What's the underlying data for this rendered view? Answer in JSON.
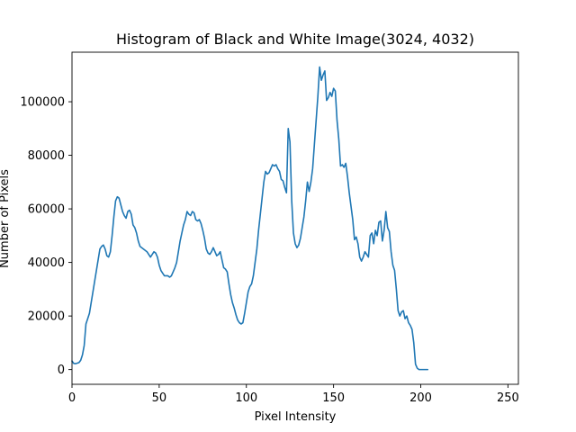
{
  "chart_data": {
    "type": "line",
    "title": "Histogram of Black and White Image(3024, 4032)",
    "xlabel": "Pixel Intensity",
    "ylabel": "Number of Pixels",
    "xlim": [
      0,
      256
    ],
    "ylim": [
      -5500,
      118500
    ],
    "grid": false,
    "legend": "none",
    "x_ticks": [
      0,
      50,
      100,
      150,
      200,
      250
    ],
    "y_ticks": [
      0,
      20000,
      40000,
      60000,
      80000,
      100000
    ],
    "colors": {
      "line": "#1f77b4",
      "axes": "#000000",
      "background": "#ffffff"
    },
    "series": [
      {
        "values": [
          3200,
          2300,
          2200,
          2400,
          2600,
          3500,
          5500,
          9000,
          17000,
          19000,
          21000,
          25000,
          29000,
          33000,
          37000,
          41000,
          45000,
          46000,
          46500,
          45000,
          42500,
          42000,
          44000,
          50000,
          57000,
          63000,
          64500,
          64000,
          61500,
          59000,
          57500,
          56500,
          59000,
          59500,
          58000,
          54000,
          53000,
          51000,
          48000,
          46000,
          45500,
          45000,
          44500,
          44000,
          43000,
          42000,
          43000,
          44000,
          43500,
          42000,
          39000,
          37000,
          36000,
          35000,
          35000,
          35000,
          34500,
          35000,
          36500,
          38000,
          40000,
          44000,
          48000,
          51000,
          54000,
          56000,
          59000,
          58000,
          57500,
          59000,
          58500,
          56000,
          55500,
          56000,
          54500,
          52000,
          49000,
          45000,
          43500,
          43000,
          44000,
          45500,
          44000,
          42500,
          43000,
          44000,
          41000,
          38000,
          37500,
          36500,
          32000,
          28000,
          25000,
          23000,
          20500,
          18500,
          17500,
          17000,
          17500,
          21000,
          25000,
          29000,
          31000,
          32000,
          35000,
          40000,
          45000,
          52000,
          58000,
          64000,
          70000,
          74000,
          73000,
          73500,
          75000,
          76500,
          76000,
          76500,
          75000,
          74000,
          71000,
          70500,
          68000,
          66000,
          90000,
          85000,
          63000,
          51000,
          47000,
          45500,
          46500,
          49000,
          53000,
          57000,
          63000,
          70000,
          66500,
          70000,
          75000,
          84000,
          93000,
          102000,
          113000,
          108000,
          110000,
          111500,
          100500,
          101500,
          103500,
          102000,
          105000,
          104000,
          93000,
          86000,
          76000,
          76500,
          75500,
          77000,
          72000,
          66000,
          61000,
          56000,
          48500,
          49500,
          47000,
          42000,
          40500,
          42000,
          44000,
          43000,
          42000,
          50000,
          51000,
          47000,
          52000,
          50000,
          55000,
          55500,
          48000,
          52000,
          59000,
          53000,
          51500,
          44000,
          39000,
          37000,
          30000,
          22000,
          20000,
          21500,
          22000,
          19000,
          20000,
          17500,
          16500,
          15000,
          10000,
          2000,
          500,
          0,
          0,
          0,
          0,
          0,
          0
        ]
      }
    ]
  }
}
